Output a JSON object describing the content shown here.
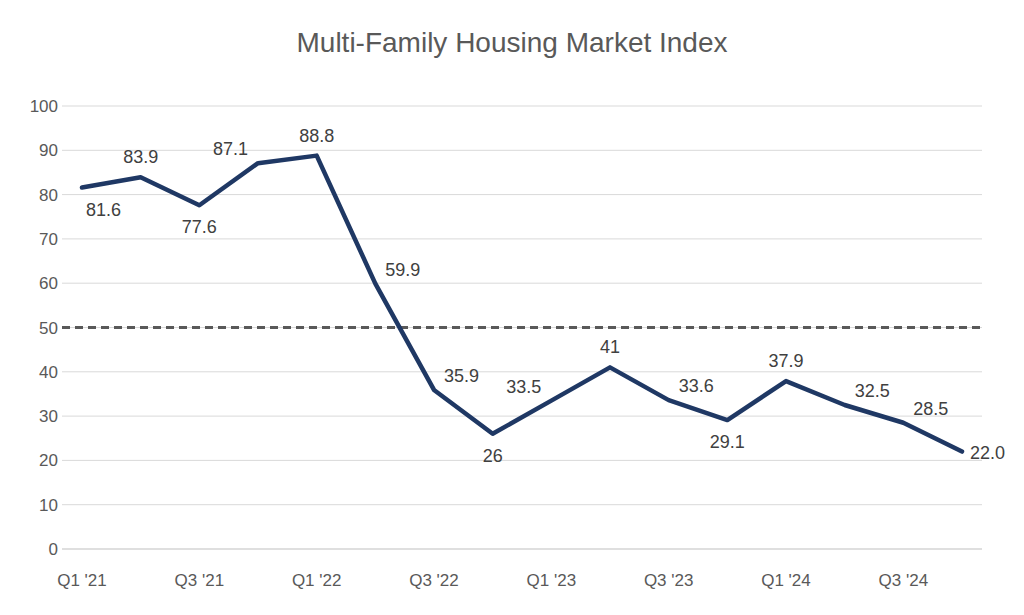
{
  "chart_data": {
    "type": "line",
    "title": "Multi-Family Housing Market Index",
    "categories": [
      "Q1 '21",
      null,
      "Q3 '21",
      null,
      "Q1 '22",
      null,
      "Q3 '22",
      null,
      "Q1 '23",
      null,
      "Q3 '23",
      null,
      "Q1 '24",
      null,
      "Q3 '24",
      null
    ],
    "values": [
      81.6,
      83.9,
      77.6,
      87.1,
      88.8,
      59.9,
      35.9,
      26,
      33.5,
      41,
      33.6,
      29.1,
      37.9,
      32.5,
      28.5,
      22.0
    ],
    "value_labels": [
      "81.6",
      "83.9",
      "77.6",
      "87.1",
      "88.8",
      "59.9",
      "35.9",
      "26",
      "33.5",
      "41",
      "33.6",
      "29.1",
      "37.9",
      "32.5",
      "28.5",
      "22.0"
    ],
    "reference_line": 50,
    "color": "#1f3864",
    "ylim": [
      0,
      100
    ],
    "yticks": [
      0,
      10,
      20,
      30,
      40,
      50,
      60,
      70,
      80,
      90,
      100
    ],
    "grid": true,
    "data_labels": true
  }
}
